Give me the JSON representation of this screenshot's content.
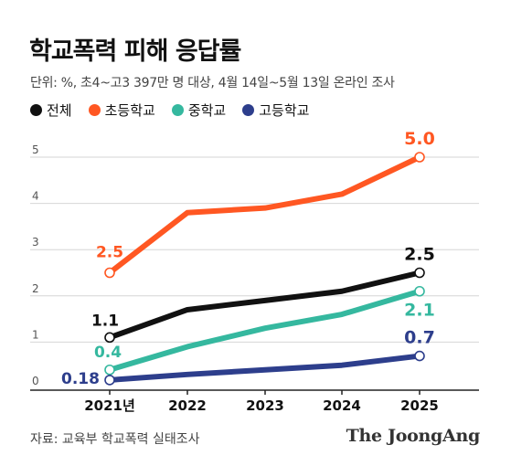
{
  "chart_data": {
    "type": "line",
    "title": "학교폭력 피해 응답률",
    "subtitle": "단위: %,  초4~고3 397만 명 대상, 4월 14일~5월 13일 온라인 조사",
    "categories": [
      "2021년",
      "2022",
      "2023",
      "2024",
      "2025"
    ],
    "ylim": [
      0,
      5
    ],
    "yticks": [
      "0",
      "1",
      "2",
      "3",
      "4",
      "5"
    ],
    "grid": true,
    "legend_position": "top-left",
    "series": [
      {
        "name": "전체",
        "color": "#111111",
        "values": [
          1.1,
          1.7,
          1.9,
          2.1,
          2.5
        ],
        "first_label": "1.1",
        "last_label": "2.5"
      },
      {
        "name": "초등학교",
        "color": "#ff5722",
        "values": [
          2.5,
          3.8,
          3.9,
          4.2,
          5.0
        ],
        "first_label": "2.5",
        "last_label": "5.0"
      },
      {
        "name": "중학교",
        "color": "#35b89f",
        "values": [
          0.4,
          0.9,
          1.3,
          1.6,
          2.1
        ],
        "first_label": "0.4",
        "last_label": "2.1"
      },
      {
        "name": "고등학교",
        "color": "#2d3e8c",
        "values": [
          0.18,
          0.3,
          0.4,
          0.5,
          0.7
        ],
        "first_label": "0.18",
        "last_label": "0.7"
      }
    ]
  },
  "footer": {
    "source": "자료: 교육부 학교폭력 실태조사",
    "logo": "The JoongAng"
  }
}
